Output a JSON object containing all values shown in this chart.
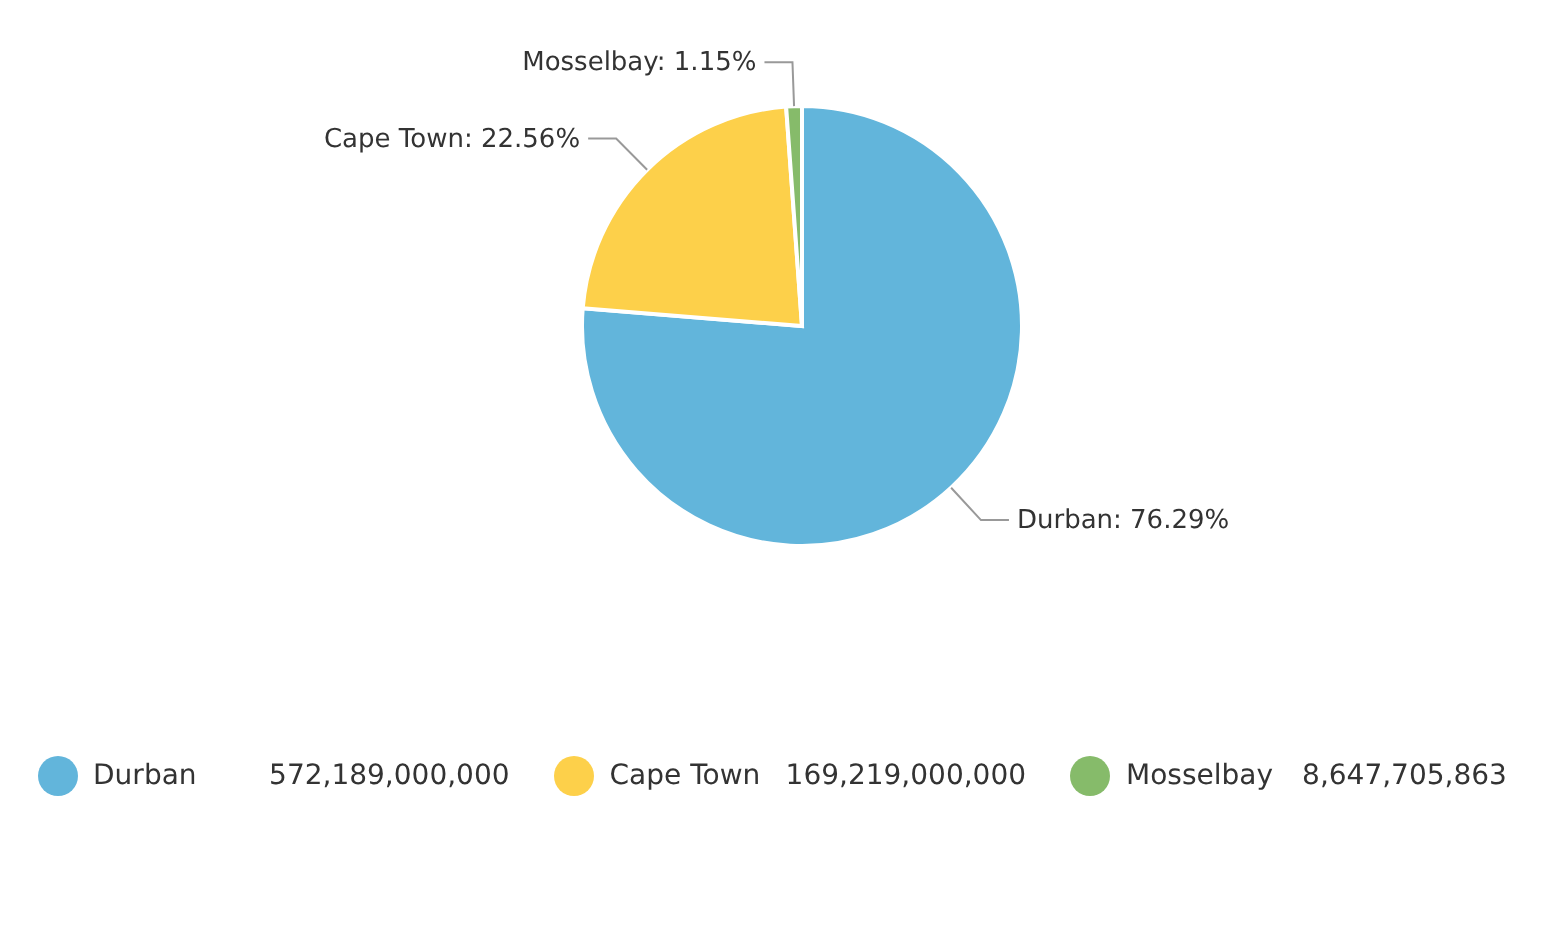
{
  "chart_data": {
    "type": "pie",
    "categories": [
      "Durban",
      "Cape Town",
      "Mosselbay"
    ],
    "values": [
      76.29,
      22.56,
      1.15
    ],
    "colors": [
      "#62b5db",
      "#fdd04a",
      "#86bb6a"
    ],
    "value_labels": [
      "Durban: 76.29%",
      "Cape Town: 22.56%",
      "Mosselbay: 1.15%"
    ],
    "annotations": [
      "572,189,000,000",
      "169,219,000,000",
      "8,647,705,863"
    ],
    "legend": "bottom"
  }
}
